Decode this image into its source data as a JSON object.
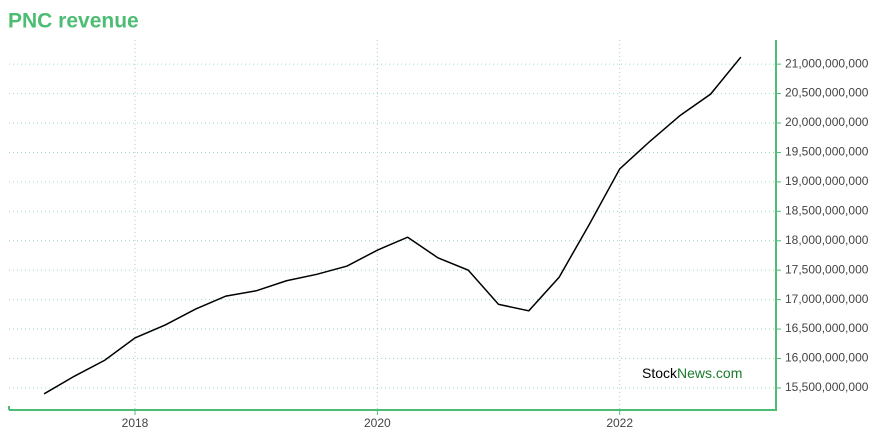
{
  "chart_data": {
    "type": "line",
    "title": "PNC revenue",
    "x": [
      2017.25,
      2017.5,
      2017.75,
      2018.0,
      2018.25,
      2018.5,
      2018.75,
      2019.0,
      2019.25,
      2019.5,
      2019.75,
      2020.0,
      2020.25,
      2020.5,
      2020.75,
      2021.0,
      2021.25,
      2021.5,
      2021.75,
      2022.0,
      2022.25,
      2022.5,
      2022.75,
      2023.0
    ],
    "series": [
      {
        "name": "PNC revenue",
        "color": "#000000",
        "values": [
          15400000000,
          15700000000,
          15970000000,
          16350000000,
          16570000000,
          16840000000,
          17060000000,
          17150000000,
          17320000000,
          17430000000,
          17570000000,
          17840000000,
          18060000000,
          17710000000,
          17500000000,
          16920000000,
          16810000000,
          17380000000,
          18280000000,
          19220000000,
          19690000000,
          20130000000,
          20490000000,
          21120000000
        ]
      }
    ],
    "xlim": [
      2016.96,
      2023.29
    ],
    "xticks": [
      2018,
      2020,
      2022
    ],
    "ylim": [
      15125000000,
      21410000000
    ],
    "yticks": [
      {
        "value": 15500000000,
        "label": "15,500,000,000"
      },
      {
        "value": 16000000000,
        "label": "16,000,000,000"
      },
      {
        "value": 16500000000,
        "label": "16,500,000,000"
      },
      {
        "value": 17000000000,
        "label": "17,000,000,000"
      },
      {
        "value": 17500000000,
        "label": "17,500,000,000"
      },
      {
        "value": 18000000000,
        "label": "18,000,000,000"
      },
      {
        "value": 18500000000,
        "label": "18,500,000,000"
      },
      {
        "value": 19000000000,
        "label": "19,000,000,000"
      },
      {
        "value": 19500000000,
        "label": "19,500,000,000"
      },
      {
        "value": 20000000000,
        "label": "20,000,000,000"
      },
      {
        "value": 20500000000,
        "label": "20,500,000,000"
      },
      {
        "value": 21000000000,
        "label": "21,000,000,000"
      }
    ],
    "grid": true,
    "axis_color": "#4dbd74",
    "watermark": {
      "brand": "Stock",
      "suffix": "News.com"
    }
  }
}
